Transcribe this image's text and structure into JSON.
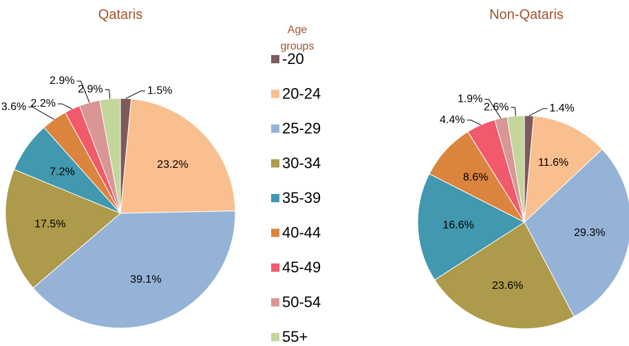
{
  "chart_data": [
    {
      "type": "pie",
      "title": "Qataris",
      "categories": [
        "-20",
        "20-24",
        "25-29",
        "30-34",
        "35-39",
        "40-44",
        "45-49",
        "50-54",
        "55+"
      ],
      "values": [
        1.5,
        23.2,
        39.1,
        17.5,
        7.2,
        3.6,
        2.2,
        2.9,
        2.9
      ],
      "value_labels": [
        "1.5%",
        "23.2%",
        "39.1%",
        "17.5%",
        "7.2%",
        "3.6%",
        "2.2%",
        "2.9%",
        "2.9%"
      ],
      "colors": [
        "#7f5a5a",
        "#f9bf8f",
        "#95b3d7",
        "#ad9a4a",
        "#4198af",
        "#db843d",
        "#f05a6a",
        "#d99694",
        "#c3d69b"
      ]
    },
    {
      "type": "pie",
      "title": "Non-Qataris",
      "categories": [
        "-20",
        "20-24",
        "25-29",
        "30-34",
        "35-39",
        "40-44",
        "45-49",
        "50-54",
        "55+"
      ],
      "values": [
        1.4,
        11.6,
        29.3,
        23.6,
        16.6,
        8.6,
        4.4,
        1.9,
        2.6
      ],
      "value_labels": [
        "1.4%",
        "11.6%",
        "29.3%",
        "23.6%",
        "16.6%",
        "8.6%",
        "4.4%",
        "1.9%",
        "2.6%"
      ],
      "colors": [
        "#7f5a5a",
        "#f9bf8f",
        "#95b3d7",
        "#ad9a4a",
        "#4198af",
        "#db843d",
        "#f05a6a",
        "#d99694",
        "#c3d69b"
      ]
    }
  ],
  "legend": {
    "title": "Age groups"
  }
}
